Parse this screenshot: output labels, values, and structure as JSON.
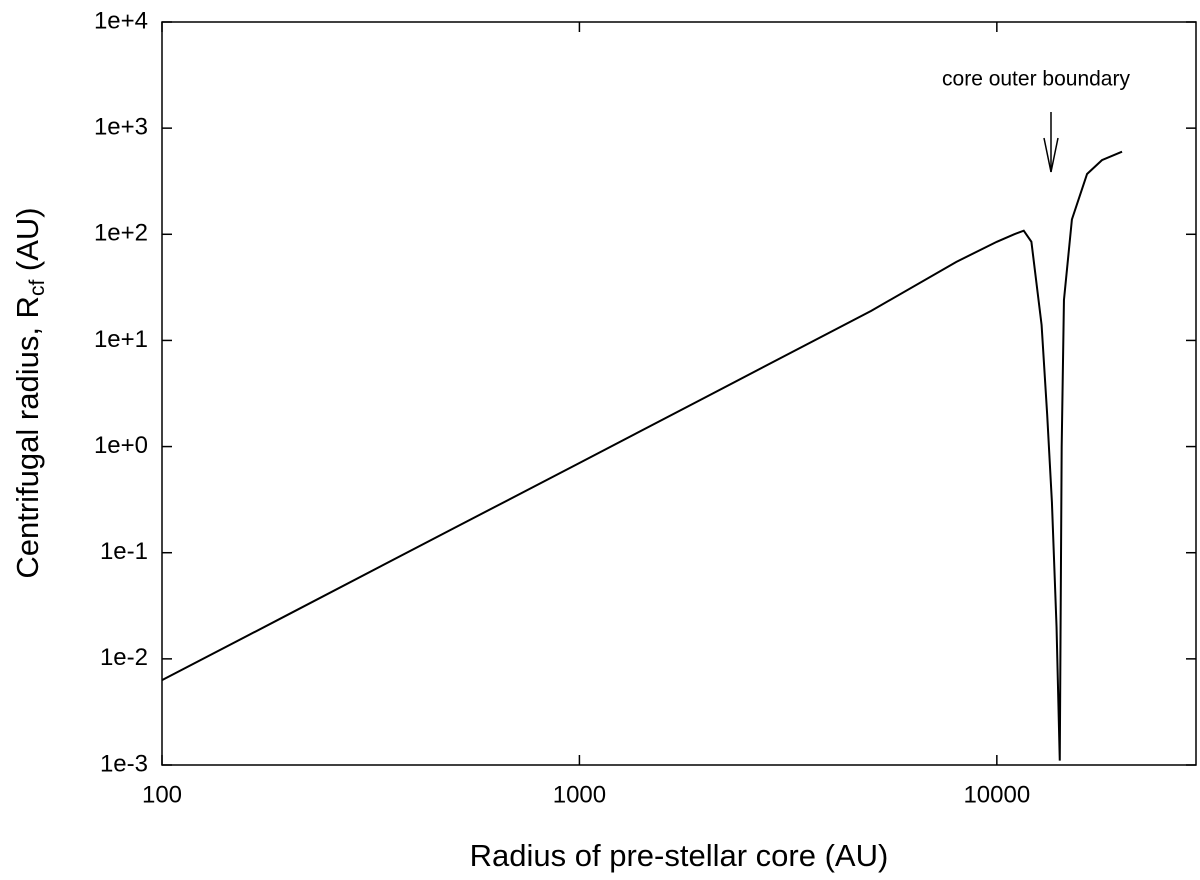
{
  "chart_data": {
    "type": "line",
    "xlabel": "Radius of pre-stellar core (AU)",
    "ylabel": {
      "text": "Centrifugal radius, R",
      "sub": "cf",
      "suffix": " (AU)"
    },
    "annotation": "core outer boundary",
    "xscale": "log",
    "yscale": "log",
    "xlim": [
      100,
      30000
    ],
    "ylim": [
      0.001,
      10000
    ],
    "xticks": [
      100,
      1000,
      10000
    ],
    "yticks": [
      {
        "value": 0.001,
        "label": "1e-3"
      },
      {
        "value": 0.01,
        "label": "1e-2"
      },
      {
        "value": 0.1,
        "label": "1e-1"
      },
      {
        "value": 1,
        "label": "1e+0"
      },
      {
        "value": 10,
        "label": "1e+1"
      },
      {
        "value": 100,
        "label": "1e+2"
      },
      {
        "value": 1000,
        "label": "1e+3"
      },
      {
        "value": 10000,
        "label": "1e+4"
      }
    ],
    "series": [
      {
        "color": "#000000",
        "x": [
          100,
          200,
          500,
          1000,
          2000,
          5000,
          8000,
          10000,
          11000,
          11600,
          12100,
          12800,
          13200,
          13550,
          13900,
          14150,
          14300,
          14480,
          15130,
          16450,
          17860,
          19950
        ],
        "values": [
          0.0063,
          0.026,
          0.17,
          0.7,
          2.9,
          19,
          55,
          85,
          100,
          108,
          85,
          14,
          2,
          0.3,
          0.02,
          0.0011,
          1,
          24,
          138,
          370,
          500,
          600
        ]
      }
    ]
  }
}
